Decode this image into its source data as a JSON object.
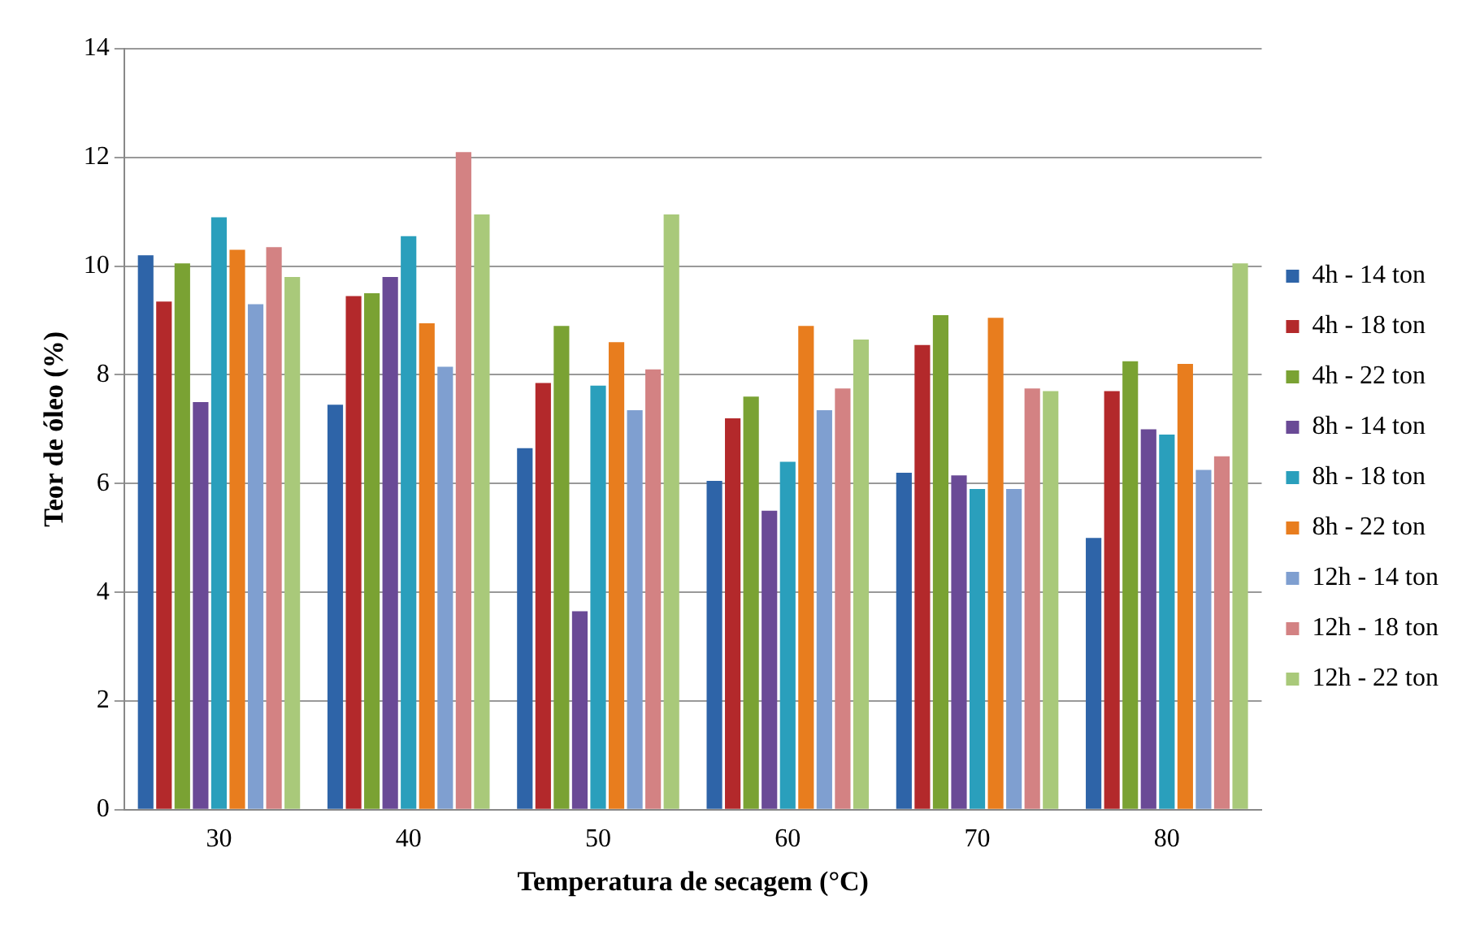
{
  "chart_data": {
    "type": "bar",
    "xlabel": "Temperatura de secagem (°C)",
    "ylabel": "Teor de óleo (%)",
    "categories": [
      "30",
      "40",
      "50",
      "60",
      "70",
      "80"
    ],
    "series": [
      {
        "name": "4h - 14 ton",
        "color": "#2e64a8",
        "values": [
          10.2,
          7.45,
          6.65,
          6.05,
          6.2,
          5.0
        ]
      },
      {
        "name": "4h - 18 ton",
        "color": "#b3292b",
        "values": [
          9.35,
          9.45,
          7.85,
          7.2,
          8.55,
          7.7
        ]
      },
      {
        "name": "4h - 22 ton",
        "color": "#7aa233",
        "values": [
          10.05,
          9.5,
          8.9,
          7.6,
          9.1,
          8.25
        ]
      },
      {
        "name": "8h - 14 ton",
        "color": "#6a4a96",
        "values": [
          7.5,
          9.8,
          3.65,
          5.5,
          6.15,
          7.0
        ]
      },
      {
        "name": "8h - 18 ton",
        "color": "#2a9fbc",
        "values": [
          10.9,
          10.55,
          7.8,
          6.4,
          5.9,
          6.9
        ]
      },
      {
        "name": "8h - 22 ton",
        "color": "#e87d1e",
        "values": [
          10.3,
          8.95,
          8.6,
          8.9,
          9.05,
          8.2
        ]
      },
      {
        "name": "12h - 14 ton",
        "color": "#7f9fd0",
        "values": [
          9.3,
          8.15,
          7.35,
          7.35,
          5.9,
          6.25
        ]
      },
      {
        "name": "12h - 18 ton",
        "color": "#d38283",
        "values": [
          10.35,
          12.1,
          8.1,
          7.75,
          7.75,
          6.5
        ]
      },
      {
        "name": "12h - 22 ton",
        "color": "#a9c97a",
        "values": [
          9.8,
          10.95,
          10.95,
          8.65,
          7.7,
          10.05
        ]
      }
    ],
    "ylim": [
      0,
      14
    ],
    "yticks": [
      0,
      2,
      4,
      6,
      8,
      10,
      12,
      14
    ],
    "grid": "y",
    "legend": "right"
  }
}
